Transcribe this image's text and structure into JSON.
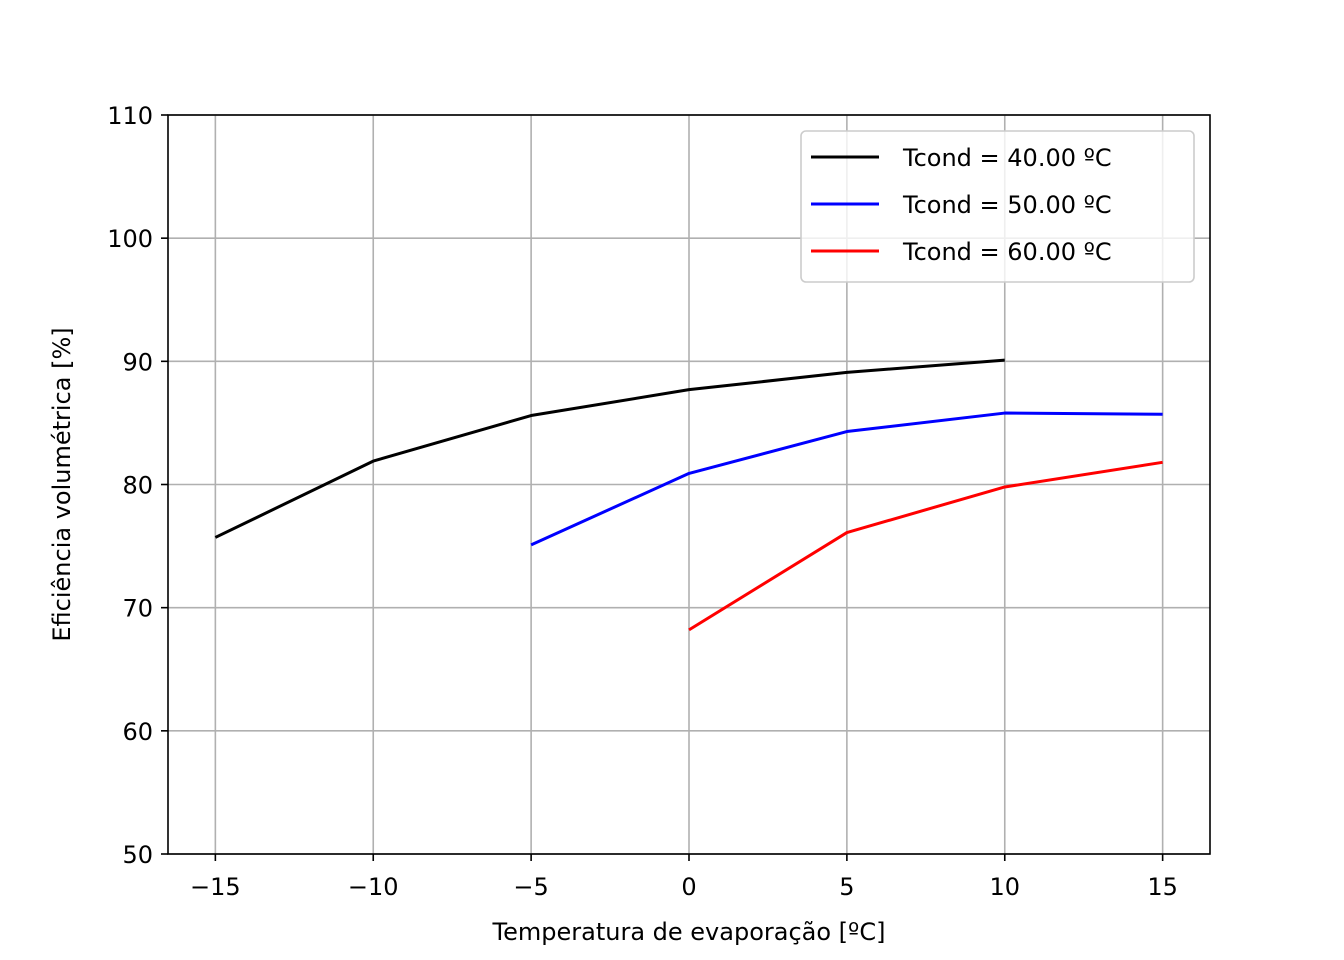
{
  "chart_data": {
    "type": "line",
    "xlabel": "Temperatura de evaporação [ºC]",
    "ylabel": "Eficiência volumétrica [%]",
    "xlim": [
      -16.5,
      16.5
    ],
    "ylim": [
      50,
      110
    ],
    "xticks": [
      -15,
      -10,
      -5,
      0,
      5,
      10,
      15
    ],
    "xtick_labels": [
      "−15",
      "−10",
      "−5",
      "0",
      "5",
      "10",
      "15"
    ],
    "yticks": [
      50,
      60,
      70,
      80,
      90,
      100,
      110
    ],
    "ytick_labels": [
      "50",
      "60",
      "70",
      "80",
      "90",
      "100",
      "110"
    ],
    "grid": true,
    "legend_position": "top-right",
    "series": [
      {
        "name": "Tcond = 40.00 ºC",
        "color": "#000000",
        "x": [
          -15,
          -10,
          -5,
          0,
          5,
          10
        ],
        "y": [
          75.7,
          81.9,
          85.6,
          87.7,
          89.1,
          90.1
        ]
      },
      {
        "name": "Tcond = 50.00 ºC",
        "color": "#0000ff",
        "x": [
          -5,
          0,
          5,
          10,
          15
        ],
        "y": [
          75.1,
          80.9,
          84.3,
          85.8,
          85.7
        ]
      },
      {
        "name": "Tcond = 60.00 ºC",
        "color": "#ff0000",
        "x": [
          0,
          5,
          10,
          15
        ],
        "y": [
          68.2,
          76.1,
          79.8,
          81.8
        ]
      }
    ]
  }
}
